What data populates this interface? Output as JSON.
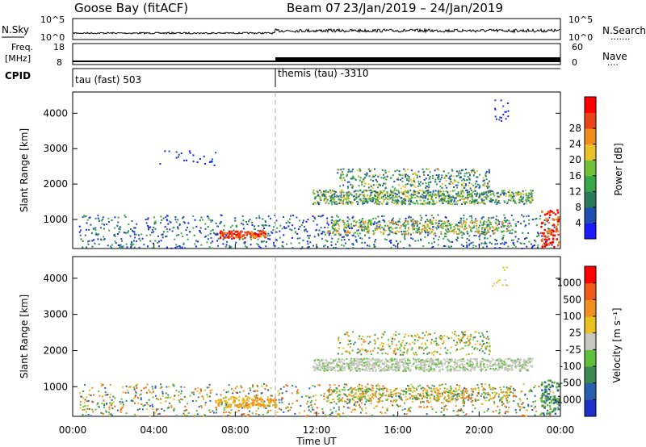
{
  "header": {
    "station": "Goose Bay (fitACF)",
    "beam": "Beam 07",
    "date_range": "23/Jan/2019 – 24/Jan/2019"
  },
  "panels": {
    "nsky_label": "N.Sky",
    "nsearch_label": "N.Search",
    "nsearch_dots": "·······",
    "freq_label": "Freq.",
    "mhz_label": "[MHz]",
    "nave_label": "Nave",
    "nave_dots": "····",
    "cpid_label": "CPID",
    "cpid_1": "tau (fast) 503",
    "cpid_2": "themis (tau) -3310"
  },
  "chart_data": [
    {
      "type": "line",
      "title": "",
      "left_ticks": [
        "10^5",
        "10^0"
      ],
      "right_ticks": [
        "10^5",
        "10^0"
      ]
    },
    {
      "type": "line",
      "title": "",
      "left_ticks": [
        "18",
        "8"
      ],
      "right_ticks": [
        "60",
        "0"
      ]
    },
    {
      "type": "heatmap",
      "title": "",
      "xlabel": "",
      "ylabel": "Slant Range [km]",
      "xlim": [
        0,
        24
      ],
      "ylim": [
        180,
        4600
      ],
      "y_ticks": [
        "1000",
        "2000",
        "3000",
        "4000"
      ],
      "colorbar_label": "Power [dB]",
      "colorbar_ticks": [
        "4",
        "8",
        "12",
        "16",
        "20",
        "24",
        "28"
      ],
      "colors": [
        "#1a1aff",
        "#1f4fb0",
        "#2a7a5a",
        "#3aa64a",
        "#6fc23a",
        "#e9c12a",
        "#f08c1c",
        "#e8451a",
        "#ff0000"
      ]
    },
    {
      "type": "heatmap",
      "title": "",
      "xlabel": "Time UT",
      "ylabel": "Slant Range [km]",
      "xlim": [
        0,
        24
      ],
      "ylim": [
        180,
        4600
      ],
      "x_ticks": [
        "00:00",
        "04:00",
        "08:00",
        "12:00",
        "16:00",
        "20:00",
        "00:00"
      ],
      "y_ticks": [
        "1000",
        "2000",
        "3000",
        "4000"
      ],
      "colorbar_label": "Velocity [m s⁻¹]",
      "colorbar_ticks": [
        "1000",
        "500",
        "100",
        "25",
        "-25",
        "-100",
        "-500",
        "-1000"
      ],
      "colors": [
        "#1f2fc8",
        "#2a5fb0",
        "#3a8a52",
        "#5fbf3a",
        "#c8c8c0",
        "#e8c020",
        "#f09020",
        "#f05a1a",
        "#ff0000"
      ]
    }
  ]
}
